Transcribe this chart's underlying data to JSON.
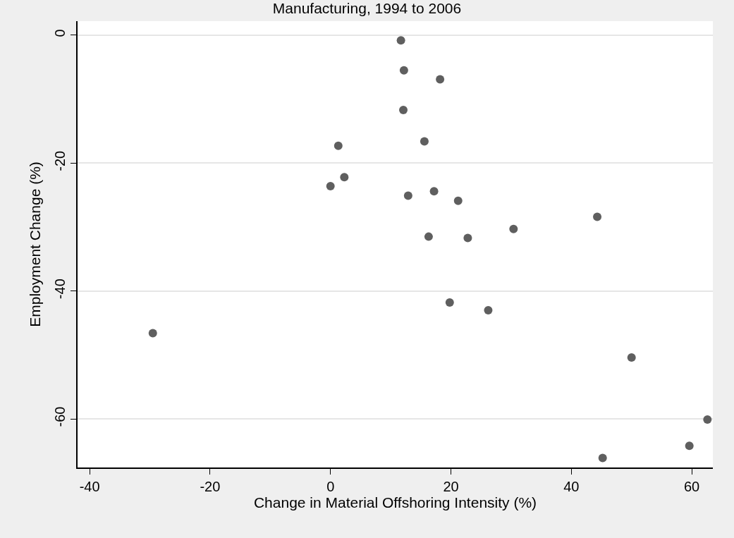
{
  "chart_data": {
    "type": "scatter",
    "title": "Manufacturing, 1994 to 2006",
    "xlabel": "Change in Material Offshoring Intensity (%)",
    "ylabel": "Employment Change (%)",
    "x": [
      11.7,
      12.2,
      18.2,
      12.1,
      15.6,
      1.3,
      2.3,
      0,
      12.9,
      17.2,
      21.2,
      16.3,
      22.8,
      30.4,
      44.3,
      19.8,
      26.2,
      -29.5,
      50.0,
      62.6,
      59.6,
      45.2
    ],
    "series": [
      {
        "color": "#5f5f5f",
        "values": [
          -0.8,
          -5.5,
          -6.9,
          -11.7,
          -16.6,
          -17.3,
          -22.2,
          -23.6,
          -25.1,
          -24.4,
          -25.9,
          -31.5,
          -31.7,
          -30.3,
          -28.4,
          -41.8,
          -43.0,
          -46.6,
          -50.4,
          -60.1,
          -64.2,
          -66.1
        ]
      }
    ],
    "xlim": [
      -42,
      63.5
    ],
    "ylim": [
      -67.6,
      2.2
    ],
    "xticks": [
      -40,
      -20,
      0,
      20,
      40,
      60
    ],
    "yticks": [
      -60,
      -40,
      -20,
      0
    ],
    "grid": "y",
    "marker": "circle"
  }
}
